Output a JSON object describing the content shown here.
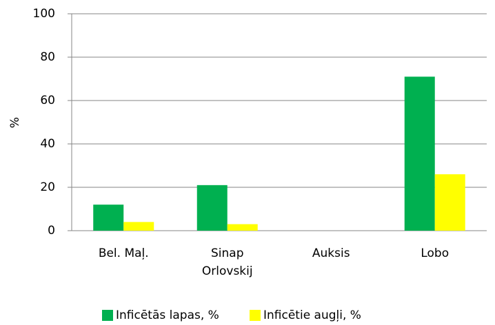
{
  "chart_data": {
    "type": "bar",
    "ylabel": "%",
    "categories": [
      "Bel. Maļ.",
      "Sinap Orlovskij",
      "Auksis",
      "Lobo"
    ],
    "series": [
      {
        "name": "Inficētās lapas, %",
        "color": "#00b050",
        "values": [
          12,
          21,
          0,
          71
        ]
      },
      {
        "name": "Inficētie augļi, %",
        "color": "#ffff00",
        "values": [
          4,
          3,
          0,
          26
        ]
      }
    ],
    "ylim": [
      0,
      100
    ],
    "yticks": [
      0,
      20,
      40,
      60,
      80,
      100
    ],
    "grid": true,
    "legend": "bottom"
  }
}
